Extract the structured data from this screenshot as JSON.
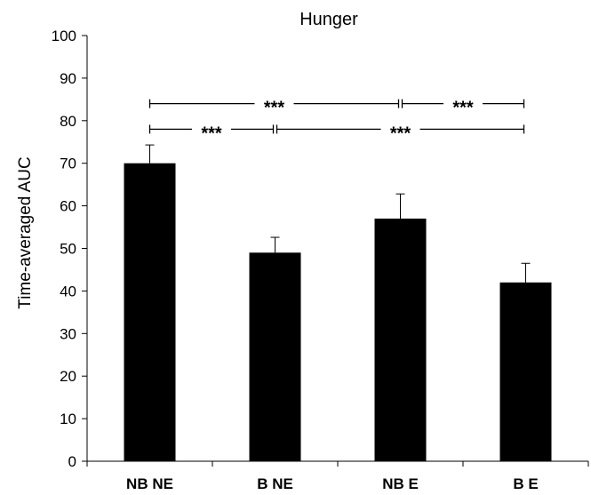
{
  "chart_data": {
    "type": "bar",
    "title": "Hunger",
    "xlabel": "",
    "ylabel": "Time-averaged AUC",
    "ylim": [
      0,
      100
    ],
    "yticks": [
      0,
      10,
      20,
      30,
      40,
      50,
      60,
      70,
      80,
      90,
      100
    ],
    "grid": false,
    "categories": [
      "NB NE",
      "B NE",
      "NB E",
      "B E"
    ],
    "values": [
      70,
      49,
      57,
      42
    ],
    "error_upper": [
      4.3,
      3.6,
      5.8,
      4.5
    ],
    "bar_color": "#000000",
    "significance": [
      {
        "from": 0,
        "to": 2,
        "label": "***",
        "y": 84
      },
      {
        "from": 2,
        "to": 3,
        "label": "***",
        "y": 84
      },
      {
        "from": 0,
        "to": 1,
        "label": "***",
        "y": 78
      },
      {
        "from": 1,
        "to": 3,
        "label": "***",
        "y": 78
      }
    ]
  }
}
